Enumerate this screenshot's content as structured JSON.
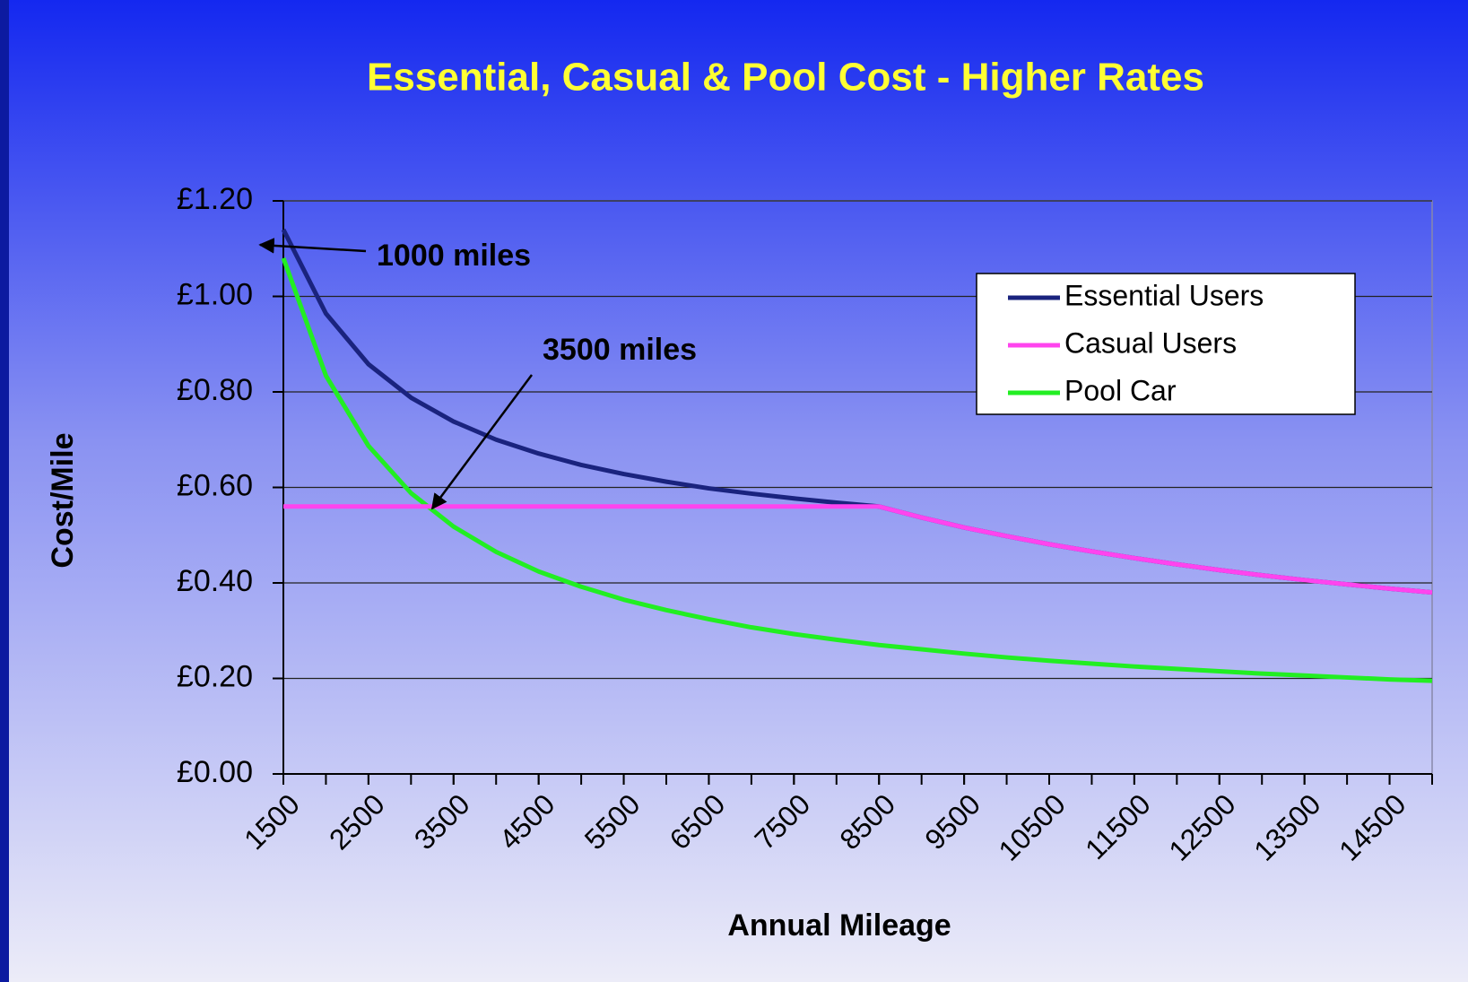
{
  "chart_data": {
    "type": "line",
    "title": "Essential, Casual & Pool Cost - Higher Rates",
    "xlabel": "Annual Mileage",
    "ylabel": "Cost/Mile",
    "x": [
      1500,
      2000,
      2500,
      3000,
      3500,
      4000,
      4500,
      5000,
      5500,
      6000,
      6500,
      7000,
      7500,
      8000,
      8500,
      9000,
      9500,
      10000,
      10500,
      11000,
      11500,
      12000,
      12500,
      13000,
      13500,
      14000,
      14500,
      15000
    ],
    "xlim": [
      1500,
      15000
    ],
    "xticks": [
      1500,
      2500,
      3500,
      4500,
      5500,
      6500,
      7500,
      8500,
      9500,
      10500,
      11500,
      12500,
      13500,
      14500
    ],
    "ylim": [
      0,
      1.2
    ],
    "yticks": [
      {
        "value": 0,
        "label": "£0.00"
      },
      {
        "value": 0.2,
        "label": "£0.20"
      },
      {
        "value": 0.4,
        "label": "£0.40"
      },
      {
        "value": 0.6,
        "label": "£0.60"
      },
      {
        "value": 0.8,
        "label": "£0.80"
      },
      {
        "value": 1.0,
        "label": "£1.00"
      },
      {
        "value": 1.2,
        "label": "£1.20"
      }
    ],
    "grid": true,
    "legend": "upper right",
    "series": [
      {
        "name": "Essential Users",
        "color": "#1a237e",
        "values": [
          1.14,
          0.964,
          0.858,
          0.788,
          0.738,
          0.7,
          0.671,
          0.647,
          0.628,
          0.612,
          0.598,
          0.587,
          0.577,
          0.568,
          0.56,
          0.537,
          0.516,
          0.498,
          0.481,
          0.466,
          0.452,
          0.439,
          0.427,
          0.416,
          0.406,
          0.397,
          0.388,
          0.38
        ]
      },
      {
        "name": "Casual Users",
        "color": "#ff44ee",
        "values": [
          0.56,
          0.56,
          0.56,
          0.56,
          0.56,
          0.56,
          0.56,
          0.56,
          0.56,
          0.56,
          0.56,
          0.56,
          0.56,
          0.56,
          0.56,
          0.537,
          0.516,
          0.498,
          0.481,
          0.466,
          0.452,
          0.439,
          0.427,
          0.416,
          0.406,
          0.397,
          0.388,
          0.38
        ]
      },
      {
        "name": "Pool Car",
        "color": "#22ee22",
        "values": [
          1.08,
          0.834,
          0.687,
          0.588,
          0.518,
          0.465,
          0.424,
          0.392,
          0.365,
          0.343,
          0.324,
          0.307,
          0.293,
          0.281,
          0.27,
          0.261,
          0.252,
          0.244,
          0.237,
          0.231,
          0.225,
          0.22,
          0.215,
          0.21,
          0.206,
          0.202,
          0.198,
          0.195
        ]
      }
    ],
    "annotations": [
      "1000 miles",
      "3500 miles"
    ]
  }
}
